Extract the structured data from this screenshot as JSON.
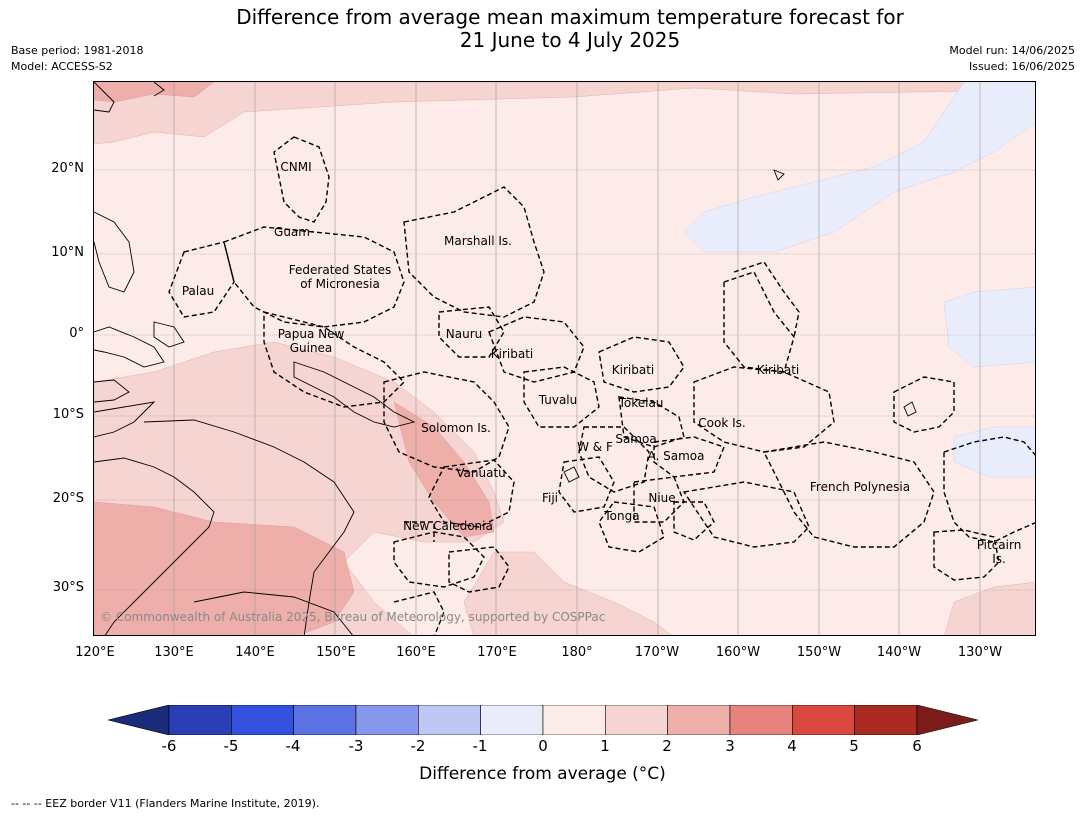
{
  "header": {
    "title_line1": "Difference from average mean maximum temperature forecast for",
    "title_line2": "21 June to 4 July 2025",
    "base_period": "Base period: 1981-2018",
    "model": "Model: ACCESS-S2",
    "model_run": "Model run: 14/06/2025",
    "issued": "Issued: 16/06/2025"
  },
  "map": {
    "lat_labels": [
      "20°N",
      "10°N",
      "0°",
      "10°S",
      "20°S",
      "30°S"
    ],
    "lon_labels": [
      "120°E",
      "130°E",
      "140°E",
      "150°E",
      "160°E",
      "170°E",
      "180°",
      "170°W",
      "160°W",
      "150°W",
      "140°W",
      "130°W"
    ],
    "regions": {
      "cnmi": "CNMI",
      "guam": "Guam",
      "marshall": "Marshall Is.",
      "fsm_line1": "Federated States",
      "fsm_line2": "of Micronesia",
      "palau": "Palau",
      "png_line1": "Papua New",
      "png_line2": "Guinea",
      "nauru": "Nauru",
      "kiribati_west": "Kiribati",
      "kiribati_central": "Kiribati",
      "kiribati_east": "Kiribati",
      "tuvalu": "Tuvalu",
      "tokelau": "Tokelau",
      "cook": "Cook Is.",
      "solomon": "Solomon Is.",
      "samoa": "Samoa",
      "wf": "W & F",
      "asamoa": "A. Samoa",
      "vanuatu": "Vanuatu",
      "fiji": "Fiji",
      "niue": "Niue",
      "tonga": "Tonga",
      "french_polynesia": "French Polynesia",
      "new_caledonia": "New Caledonia",
      "pitcairn_line1": "Pitcairn",
      "pitcairn_line2": "Is."
    },
    "copyright": "© Commonwealth of Australia 2025, Bureau of Meteorology, supported by COSPPac"
  },
  "colorbar": {
    "ticks": [
      "-6",
      "-5",
      "-4",
      "-3",
      "-2",
      "-1",
      "0",
      "1",
      "2",
      "3",
      "4",
      "5",
      "6"
    ],
    "colors": {
      "below_min": "#1c2a7a",
      "bins": [
        "#2a3fb5",
        "#3450e0",
        "#5a72e6",
        "#8797ec",
        "#bfc8f4",
        "#e9ecfb",
        "#fcebe9",
        "#f6d4d1",
        "#eeaeaa",
        "#e5837e",
        "#d9483f",
        "#ad2a22"
      ],
      "above_max": "#7a1c18"
    },
    "label": "Difference from average (°C)"
  },
  "footnote": "--  --  -- EEZ border V11 (Flanders Marine Institute, 2019)."
}
